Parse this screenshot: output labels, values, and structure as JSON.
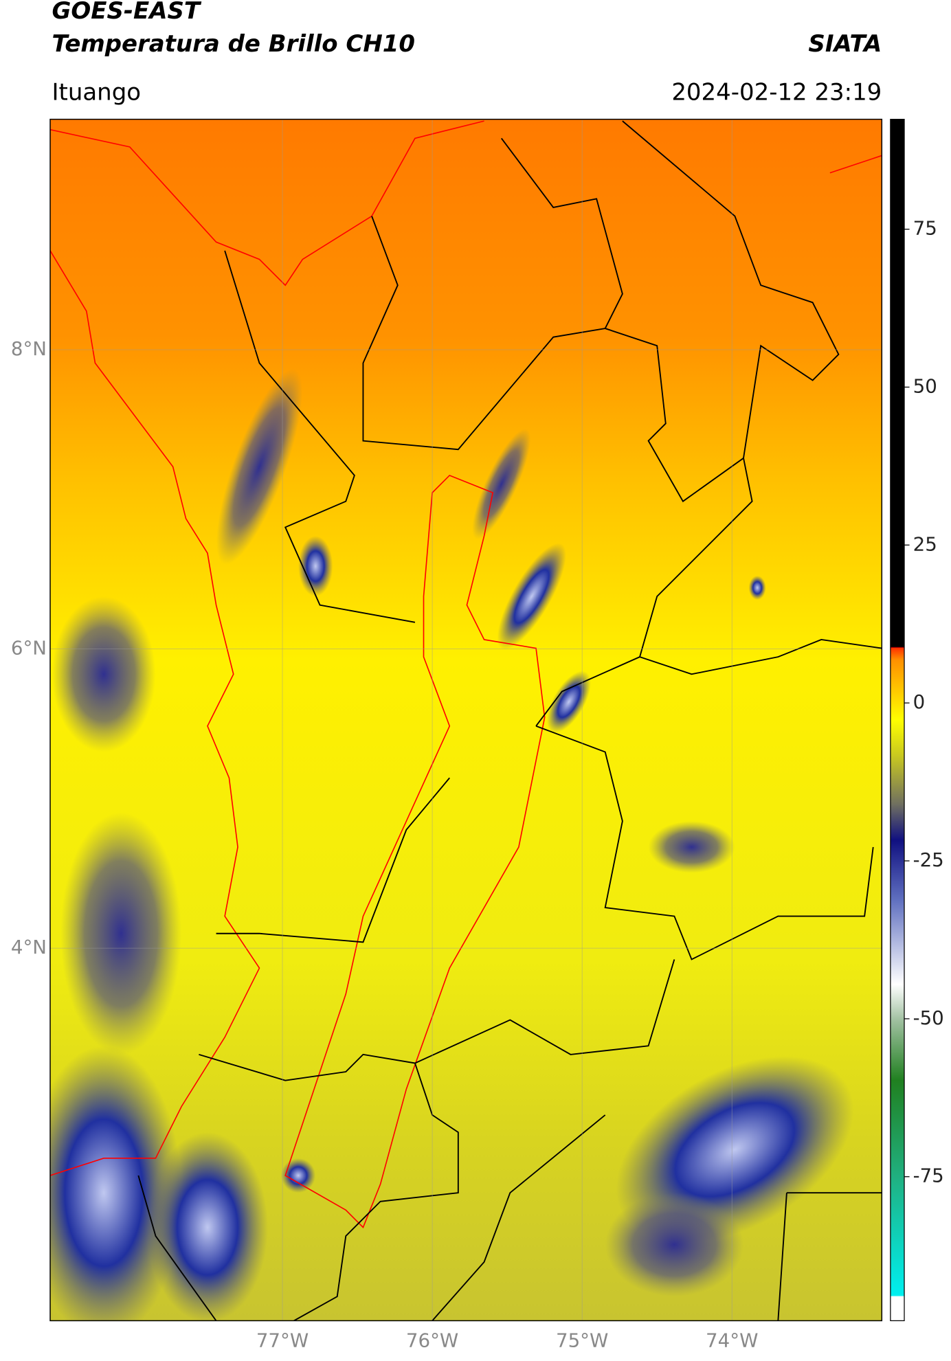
{
  "header": {
    "title": "GOES-EAST",
    "subtitle": "Temperatura de Brillo CH10",
    "brand": "SIATA",
    "place": "Ituango",
    "datetime": "2024-02-12 23:19"
  },
  "map": {
    "xlim": [
      -78.55,
      -73.0
    ],
    "ylim": [
      1.51,
      9.54
    ],
    "xticks": [
      {
        "value": -77,
        "label": "77°W"
      },
      {
        "value": -76,
        "label": "76°W"
      },
      {
        "value": -75,
        "label": "75°W"
      },
      {
        "value": -74,
        "label": "74°W"
      }
    ],
    "yticks": [
      {
        "value": 8,
        "label": "8°N"
      },
      {
        "value": 6,
        "label": "6°N"
      },
      {
        "value": 4,
        "label": "4°N"
      }
    ],
    "grid": true
  },
  "colorbar": {
    "lim": [
      -97.8,
      92.4
    ],
    "ticks": [
      75,
      50,
      25,
      0,
      -25,
      -50,
      -75
    ]
  }
}
